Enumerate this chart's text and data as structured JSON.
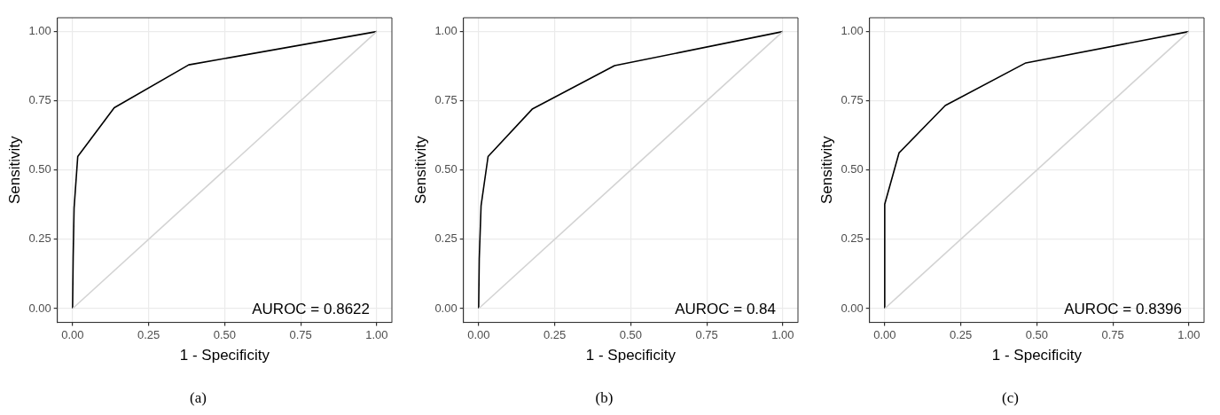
{
  "chart_data": [
    {
      "type": "line",
      "title": "(a)",
      "xlabel": "1 - Specificity",
      "ylabel": "Sensitivity",
      "xlim": [
        -0.05,
        1.05
      ],
      "ylim": [
        -0.05,
        1.05
      ],
      "xticks": [
        {
          "value": 0,
          "label": "0.00"
        },
        {
          "value": 0.25,
          "label": "0.25"
        },
        {
          "value": 0.5,
          "label": "0.50"
        },
        {
          "value": 0.75,
          "label": "0.75"
        },
        {
          "value": 1,
          "label": "1.00"
        }
      ],
      "yticks": [
        {
          "value": 0,
          "label": "0.00"
        },
        {
          "value": 0.25,
          "label": "0.25"
        },
        {
          "value": 0.5,
          "label": "0.50"
        },
        {
          "value": 0.75,
          "label": "0.75"
        },
        {
          "value": 1,
          "label": "1.00"
        }
      ],
      "grid": true,
      "legend": false,
      "marker": "none",
      "annotations": [
        "AUROC = 0.8622"
      ],
      "series": [
        {
          "color": "#000000",
          "x": [
            0,
            0.002,
            0.005,
            0.017,
            0.137,
            0.382,
            1
          ],
          "values": [
            0,
            0.186,
            0.363,
            0.549,
            0.725,
            0.88,
            1
          ]
        },
        {
          "color": "#d3d3d3",
          "x": [
            0,
            1
          ],
          "values": [
            0,
            1
          ]
        }
      ]
    },
    {
      "type": "line",
      "title": "(b)",
      "xlabel": "1 - Specificity",
      "ylabel": "Sensitivity",
      "xlim": [
        -0.05,
        1.05
      ],
      "ylim": [
        -0.05,
        1.05
      ],
      "xticks": [
        {
          "value": 0,
          "label": "0.00"
        },
        {
          "value": 0.25,
          "label": "0.25"
        },
        {
          "value": 0.5,
          "label": "0.50"
        },
        {
          "value": 0.75,
          "label": "0.75"
        },
        {
          "value": 1,
          "label": "1.00"
        }
      ],
      "yticks": [
        {
          "value": 0,
          "label": "0.00"
        },
        {
          "value": 0.25,
          "label": "0.25"
        },
        {
          "value": 0.5,
          "label": "0.50"
        },
        {
          "value": 0.75,
          "label": "0.75"
        },
        {
          "value": 1,
          "label": "1.00"
        }
      ],
      "grid": true,
      "legend": false,
      "marker": "none",
      "annotations": [
        "AUROC = 0.84"
      ],
      "series": [
        {
          "color": "#000000",
          "x": [
            0,
            0.002,
            0.008,
            0.031,
            0.176,
            0.447,
            1
          ],
          "values": [
            0,
            0.179,
            0.372,
            0.549,
            0.72,
            0.877,
            1
          ]
        },
        {
          "color": "#d3d3d3",
          "x": [
            0,
            1
          ],
          "values": [
            0,
            1
          ]
        }
      ]
    },
    {
      "type": "line",
      "title": "(c)",
      "xlabel": "1 - Specificity",
      "ylabel": "Sensitivity",
      "xlim": [
        -0.05,
        1.05
      ],
      "ylim": [
        -0.05,
        1.05
      ],
      "xticks": [
        {
          "value": 0,
          "label": "0.00"
        },
        {
          "value": 0.25,
          "label": "0.25"
        },
        {
          "value": 0.5,
          "label": "0.50"
        },
        {
          "value": 0.75,
          "label": "0.75"
        },
        {
          "value": 1,
          "label": "1.00"
        }
      ],
      "yticks": [
        {
          "value": 0,
          "label": "0.00"
        },
        {
          "value": 0.25,
          "label": "0.25"
        },
        {
          "value": 0.5,
          "label": "0.50"
        },
        {
          "value": 0.75,
          "label": "0.75"
        },
        {
          "value": 1,
          "label": "1.00"
        }
      ],
      "grid": true,
      "legend": false,
      "marker": "none",
      "annotations": [
        "AUROC = 0.8396"
      ],
      "series": [
        {
          "color": "#000000",
          "x": [
            0,
            0,
            0.047,
            0.199,
            0.464,
            1
          ],
          "values": [
            0,
            0.377,
            0.562,
            0.733,
            0.887,
            1
          ]
        },
        {
          "color": "#d3d3d3",
          "x": [
            0,
            1
          ],
          "values": [
            0,
            1
          ]
        }
      ]
    }
  ]
}
